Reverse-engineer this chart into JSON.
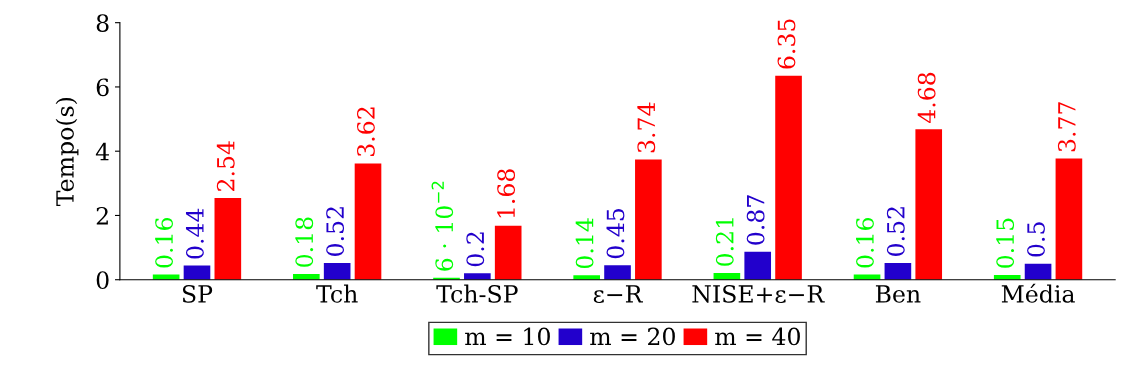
{
  "chart_data": {
    "type": "bar",
    "ylabel": "Tempo(s)",
    "categories": [
      "SP",
      "Tch",
      "Tch-SP",
      "ε−R",
      "NISE+ε−R",
      "Ben",
      "Média"
    ],
    "ylim": [
      0,
      8
    ],
    "yticks": [
      0,
      2,
      4,
      6,
      8
    ],
    "grid": false,
    "legend": "bottom",
    "series": [
      {
        "name": "m = 10",
        "color": "#00ff00",
        "values": [
          0.16,
          0.18,
          0.06,
          0.14,
          0.21,
          0.16,
          0.15
        ],
        "value_labels": [
          "0.16",
          "0.18",
          "6 · 10$^{−2}$",
          "0.14",
          "0.21",
          "0.16",
          "0.15"
        ]
      },
      {
        "name": "m = 20",
        "color": "#2200cc",
        "values": [
          0.44,
          0.52,
          0.2,
          0.45,
          0.87,
          0.52,
          0.5
        ],
        "value_labels": [
          "0.44",
          "0.52",
          "0.2",
          "0.45",
          "0.87",
          "0.52",
          "0.5"
        ]
      },
      {
        "name": "m = 40",
        "color": "#ff0000",
        "values": [
          2.54,
          3.62,
          1.68,
          3.74,
          6.35,
          4.68,
          3.77
        ],
        "value_labels": [
          "2.54",
          "3.62",
          "1.68",
          "3.74",
          "6.35",
          "4.68",
          "3.77"
        ]
      }
    ]
  }
}
